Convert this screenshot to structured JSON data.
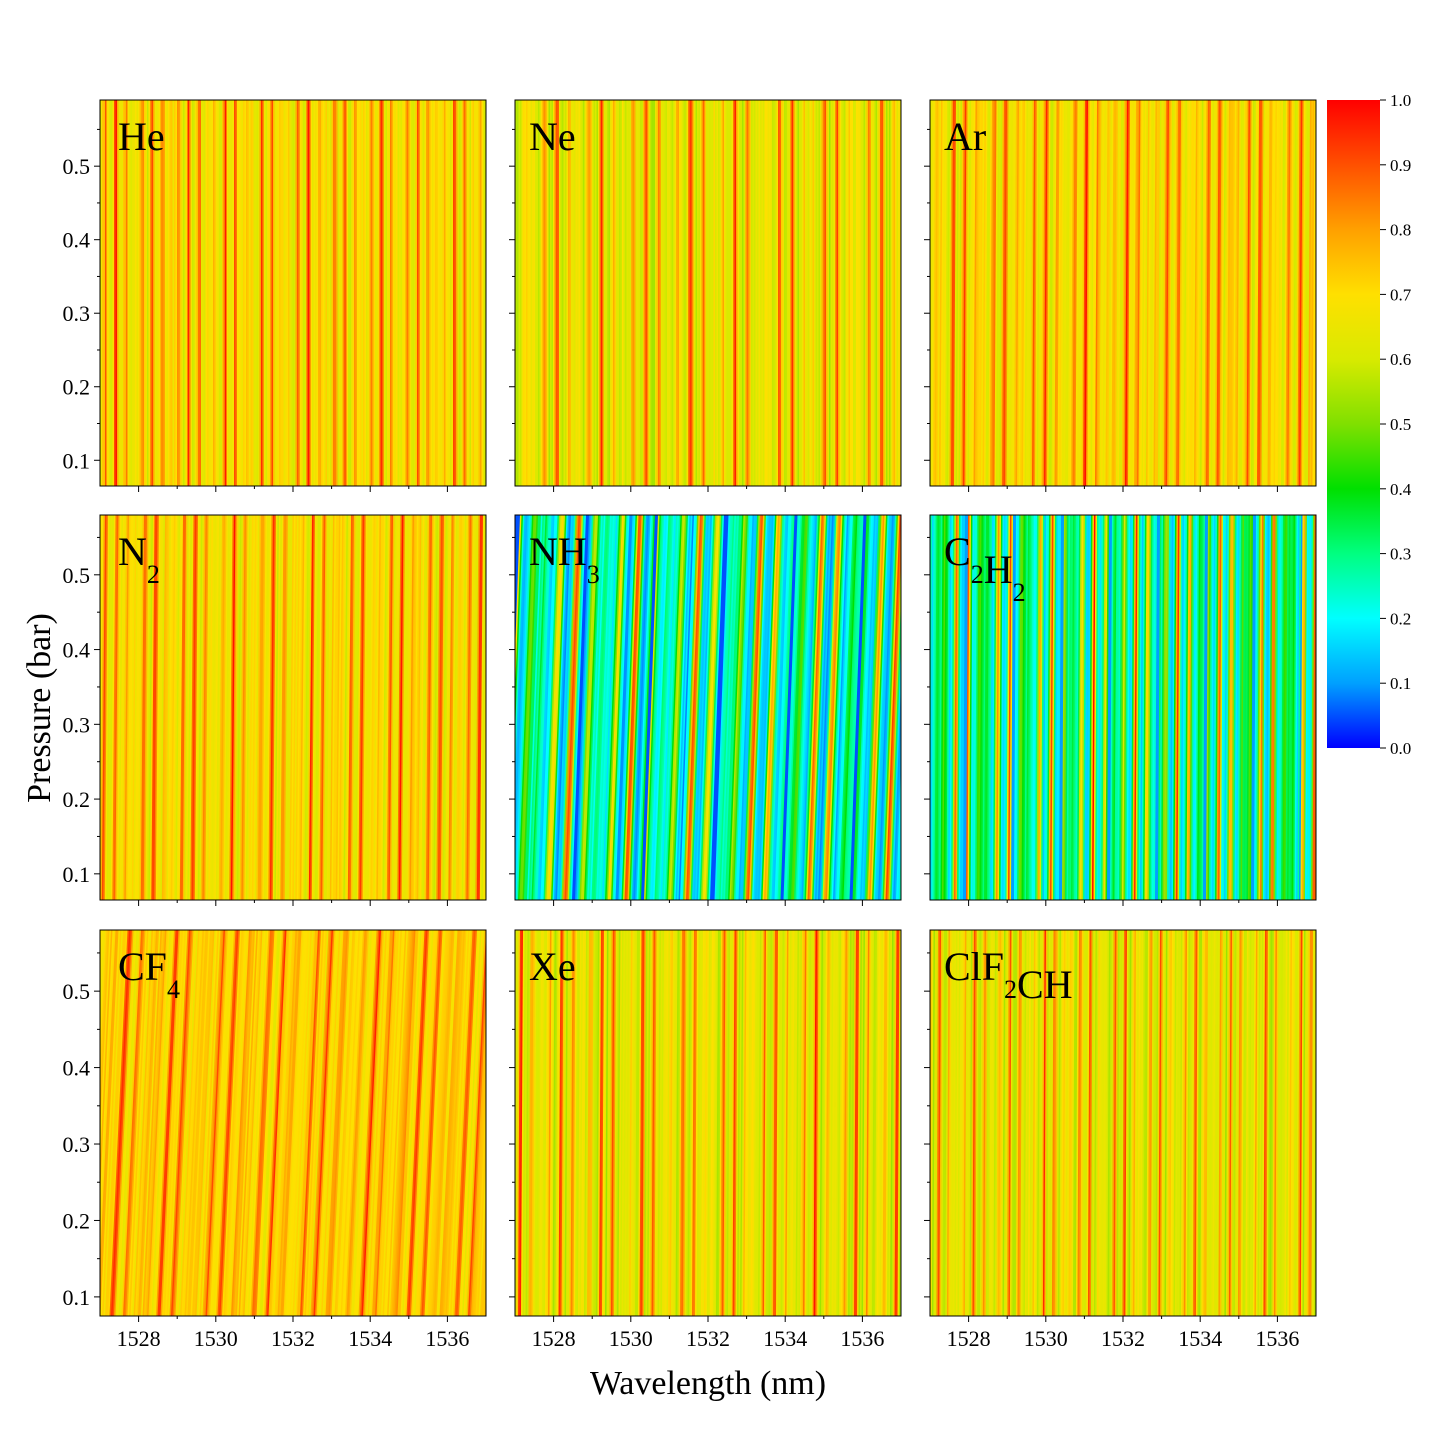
{
  "chart_data": {
    "type": "heatmap",
    "title": "",
    "xlabel": "Wavelength (nm)",
    "ylabel": "Pressure (bar)",
    "xlim": [
      1527.0,
      1537.0
    ],
    "x_ticks": [
      1528,
      1530,
      1532,
      1534,
      1536
    ],
    "x_tick_labels": [
      "1528",
      "1530",
      "1532",
      "1534",
      "1536"
    ],
    "y_ticks": [
      0.1,
      0.2,
      0.3,
      0.4,
      0.5
    ],
    "y_tick_labels": [
      "0.1",
      "0.2",
      "0.3",
      "0.4",
      "0.5"
    ],
    "colorbar": {
      "range": [
        0.0,
        1.0
      ],
      "ticks": [
        0.0,
        0.1,
        0.2,
        0.3,
        0.4,
        0.5,
        0.6,
        0.7,
        0.8,
        0.9,
        1.0
      ],
      "tick_labels": [
        "0.0",
        "0.1",
        "0.2",
        "0.3",
        "0.4",
        "0.5",
        "0.6",
        "0.7",
        "0.8",
        "0.9",
        "1.0"
      ],
      "colors": [
        "#0000ff",
        "#00a0ff",
        "#00ffff",
        "#00ff80",
        "#00e000",
        "#80e000",
        "#d8ea00",
        "#ffe000",
        "#ffa000",
        "#ff5000",
        "#ff0000"
      ]
    },
    "panels": [
      {
        "gas": "He",
        "base": "He",
        "sub": "",
        "rest": "",
        "ylim": [
          0.065,
          0.59
        ],
        "period_nm": 0.27,
        "min_value": 0.55,
        "max_value": 0.95,
        "tilt": 0.0
      },
      {
        "gas": "Ne",
        "base": "Ne",
        "sub": "",
        "rest": "",
        "ylim": [
          0.065,
          0.59
        ],
        "period_nm": 0.33,
        "min_value": 0.5,
        "max_value": 0.95,
        "tilt": 0.0
      },
      {
        "gas": "Ar",
        "base": "Ar",
        "sub": "",
        "rest": "",
        "ylim": [
          0.065,
          0.59
        ],
        "period_nm": 0.3,
        "min_value": 0.55,
        "max_value": 0.95,
        "tilt": 0.05
      },
      {
        "gas": "N2",
        "base": "N",
        "sub": "2",
        "rest": "",
        "ylim": [
          0.065,
          0.58
        ],
        "period_nm": 0.29,
        "min_value": 0.55,
        "max_value": 0.95,
        "tilt": 0.08
      },
      {
        "gas": "NH3",
        "base": "NH",
        "sub": "3",
        "rest": "",
        "ylim": [
          0.065,
          0.58
        ],
        "period_nm": 0.45,
        "min_value": 0.05,
        "max_value": 0.95,
        "tilt": 0.35
      },
      {
        "gas": "C2H2",
        "base": "C",
        "sub": "2",
        "rest": "H",
        "sub2": "2",
        "ylim": [
          0.065,
          0.58
        ],
        "period_nm": 0.31,
        "min_value": 0.1,
        "max_value": 0.95,
        "tilt": 0.05
      },
      {
        "gas": "CF4",
        "base": "CF",
        "sub": "4",
        "rest": "",
        "ylim": [
          0.075,
          0.58
        ],
        "period_nm": 0.35,
        "min_value": 0.6,
        "max_value": 0.92,
        "tilt": 0.45
      },
      {
        "gas": "Xe",
        "base": "Xe",
        "sub": "",
        "rest": "",
        "ylim": [
          0.075,
          0.58
        ],
        "period_nm": 0.3,
        "min_value": 0.5,
        "max_value": 0.95,
        "tilt": 0.05
      },
      {
        "gas": "ClF2CH",
        "base": "ClF",
        "sub": "2",
        "rest": "CH",
        "ylim": [
          0.075,
          0.58
        ],
        "period_nm": 0.26,
        "min_value": 0.5,
        "max_value": 0.92,
        "tilt": 0.04
      }
    ]
  }
}
